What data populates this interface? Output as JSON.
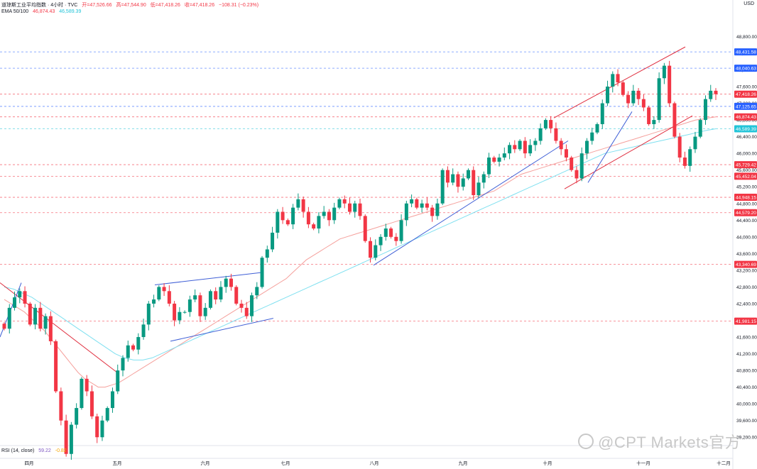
{
  "header": {
    "title": "道琼斯工业平均指数 · 4小时 · TVC",
    "open": "开=47,526.66",
    "high": "高=47,544.90",
    "low": "低=47,418.26",
    "close": "收=47,418.26",
    "change": "−108.31 (−0.23%)",
    "ema_label": "EMA 50/100",
    "ema50": "46,874.43",
    "ema100": "46,589.39",
    "rsi_label": "RSI (14, close)",
    "rsi1": "59.22",
    "rsi2": "-0.82"
  },
  "currency": "USD",
  "watermark": "@CPT Markets官方",
  "colors": {
    "up": "#089981",
    "down": "#f23645",
    "ema50": "#f5a09c",
    "ema100": "#7fe0f0",
    "trend_blue": "#3f5fd6",
    "trend_red": "#e03040"
  },
  "chart_data": {
    "type": "candlestick",
    "symbol": "道琼斯工业平均指数",
    "timeframe": "4小时",
    "ylim": [
      39000,
      49300
    ],
    "y_ticks": [
      39200,
      39600,
      40000,
      40400,
      40800,
      41200,
      41600,
      42000,
      42400,
      42800,
      43200,
      43600,
      44000,
      44400,
      44800,
      45200,
      45600,
      46000,
      46400,
      46800,
      47200,
      47600,
      48000,
      48400,
      48800
    ],
    "months": [
      "四月",
      "五月",
      "六月",
      "七月",
      "八月",
      "九月",
      "十月",
      "十一月",
      "十二月"
    ],
    "closes": [
      41800,
      42300,
      42550,
      42700,
      42400,
      41900,
      42300,
      41800,
      42100,
      41500,
      40300,
      39600,
      38800,
      39500,
      39900,
      40600,
      40300,
      39700,
      39200,
      39600,
      39900,
      40300,
      40800,
      41100,
      41400,
      41300,
      41600,
      41900,
      42400,
      42500,
      42800,
      42700,
      42400,
      42000,
      42200,
      42200,
      42500,
      42600,
      42100,
      42300,
      42700,
      42500,
      42800,
      43000,
      42800,
      42400,
      42300,
      42100,
      42600,
      42800,
      43500,
      43700,
      44100,
      44600,
      44400,
      44300,
      44700,
      44900,
      44600,
      44300,
      44200,
      44500,
      44600,
      44400,
      44700,
      44900,
      44800,
      44600,
      44800,
      44500,
      43900,
      43500,
      43800,
      44000,
      44200,
      44000,
      43900,
      44400,
      44800,
      44900,
      44700,
      44800,
      44700,
      44500,
      44800,
      45600,
      45300,
      45500,
      45200,
      45400,
      45600,
      45000,
      45300,
      45500,
      45900,
      45800,
      45900,
      46000,
      46200,
      46100,
      46300,
      46000,
      46200,
      46300,
      46600,
      46800,
      46600,
      46300,
      46100,
      45900,
      45600,
      45400,
      46000,
      46300,
      46500,
      46700,
      47200,
      47600,
      47900,
      47700,
      47400,
      47200,
      47500,
      47300,
      47100,
      46700,
      46800,
      47800,
      48100,
      47200,
      46400,
      45900,
      45700,
      46100,
      46400,
      46800,
      47300,
      47500,
      47418
    ],
    "ema50": [
      42500,
      42400,
      42300,
      42200,
      42050,
      41900,
      41750,
      41550,
      41350,
      41150,
      40950,
      40750,
      40600,
      40500,
      40400,
      40400,
      40450,
      40500,
      40600,
      40700,
      40800,
      40900,
      41000,
      41100,
      41200,
      41300,
      41400,
      41500,
      41600,
      41700,
      41800,
      41900,
      42000,
      42100,
      42200,
      42300,
      42400,
      42500,
      42600,
      42700,
      42800,
      42900,
      43000,
      43150,
      43300,
      43450,
      43550,
      43650,
      43750,
      43850,
      43950,
      44000,
      44050,
      44100,
      44150,
      44200,
      44250,
      44300,
      44350,
      44400,
      44450,
      44500,
      44550,
      44600,
      44650,
      44700,
      44750,
      44800,
      44850,
      44900,
      44950,
      45000,
      45050,
      45100,
      45200,
      45300,
      45400,
      45500,
      45550,
      45600,
      45650,
      45700,
      45750,
      45800,
      45850,
      45900,
      45950,
      46000,
      46050,
      46100,
      46150,
      46200,
      46250,
      46300,
      46350,
      46400,
      46450,
      46500,
      46550,
      46600,
      46650,
      46700,
      46750,
      46800,
      46820,
      46850,
      46874
    ],
    "ema100": [
      42800,
      42750,
      42650,
      42550,
      42400,
      42250,
      42100,
      41950,
      41800,
      41650,
      41500,
      41350,
      41200,
      41100,
      41050,
      41050,
      41100,
      41200,
      41300,
      41400,
      41500,
      41600,
      41700,
      41800,
      41900,
      42000,
      42100,
      42200,
      42300,
      42400,
      42500,
      42600,
      42700,
      42800,
      42900,
      43000,
      43100,
      43200,
      43300,
      43400,
      43500,
      43600,
      43700,
      43800,
      43900,
      44000,
      44100,
      44200,
      44300,
      44400,
      44500,
      44600,
      44700,
      44800,
      44900,
      45000,
      45100,
      45200,
      45300,
      45400,
      45500,
      45600,
      45700,
      45800,
      45900,
      46000,
      46050,
      46100,
      46150,
      46200,
      46250,
      46300,
      46350,
      46400,
      46450,
      46500,
      46550,
      46589
    ],
    "price_labels": [
      {
        "value": 48431.58,
        "label": "48,431.58",
        "color": "#2962ff"
      },
      {
        "value": 48040.63,
        "label": "48,040.63",
        "color": "#2962ff"
      },
      {
        "value": 47418.26,
        "label": "47,418.26",
        "color": "#f23645"
      },
      {
        "value": 47125.65,
        "label": "47,125.65",
        "color": "#2962ff"
      },
      {
        "value": 46874.43,
        "label": "46,874.43",
        "color": "#f23645"
      },
      {
        "value": 46589.39,
        "label": "46,589.39",
        "color": "#22c4d8"
      },
      {
        "value": 45729.42,
        "label": "45,729.42",
        "color": "#f23645"
      },
      {
        "value": 45452.04,
        "label": "45,452.04",
        "color": "#f23645"
      },
      {
        "value": 44948.15,
        "label": "44,948.15",
        "color": "#f23645"
      },
      {
        "value": 44579.2,
        "label": "44,579.20",
        "color": "#f23645"
      },
      {
        "value": 43340.69,
        "label": "43,340.69",
        "color": "#f23645"
      },
      {
        "value": 41981.15,
        "label": "41,981.15",
        "color": "#f23645"
      }
    ]
  }
}
